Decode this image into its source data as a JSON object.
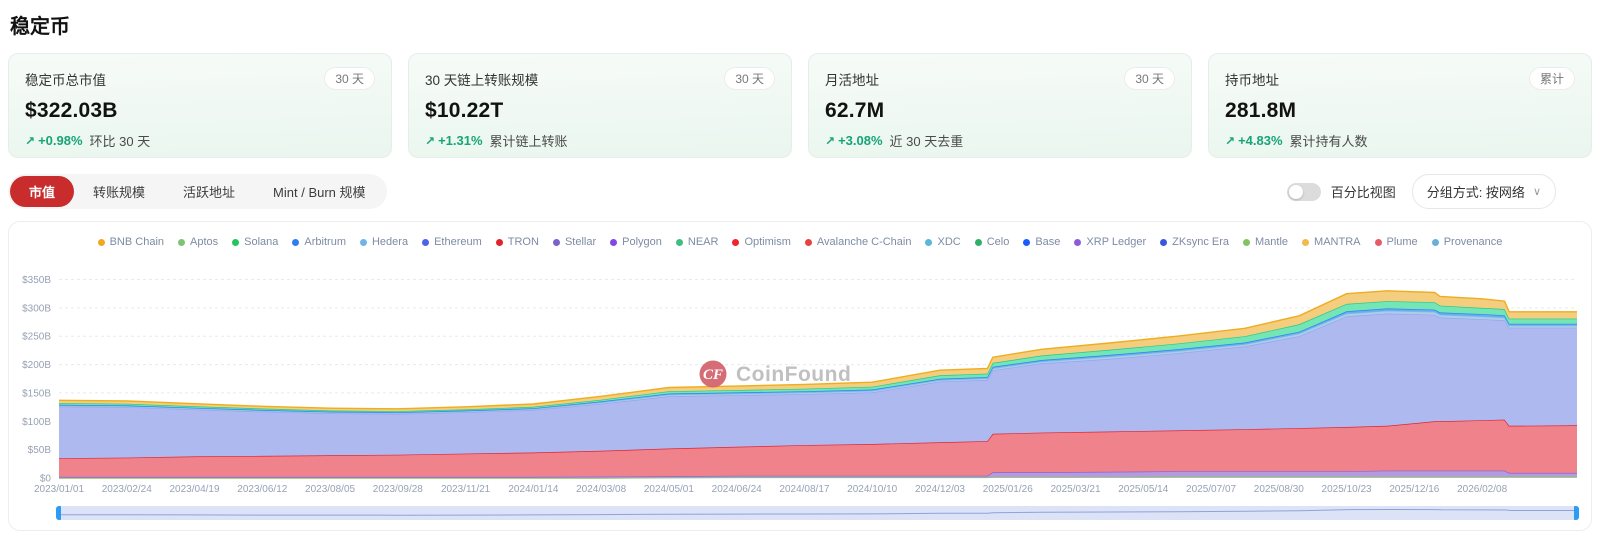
{
  "page": {
    "title": "稳定币"
  },
  "icons": {
    "trend_up": "↗",
    "chevron_down": "∨"
  },
  "stats": [
    {
      "title": "稳定币总市值",
      "badge": "30 天",
      "value": "$322.03B",
      "change": "+0.98%",
      "change_label": "环比 30 天"
    },
    {
      "title": "30 天链上转账规模",
      "badge": "30 天",
      "value": "$10.22T",
      "change": "+1.31%",
      "change_label": "累计链上转账"
    },
    {
      "title": "月活地址",
      "badge": "30 天",
      "value": "62.7M",
      "change": "+3.08%",
      "change_label": "近 30 天去重"
    },
    {
      "title": "持币地址",
      "badge": "累计",
      "value": "281.8M",
      "change": "+4.83%",
      "change_label": "累计持有人数"
    }
  ],
  "tabs": [
    {
      "label": "市值",
      "active": true
    },
    {
      "label": "转账规模",
      "active": false
    },
    {
      "label": "活跃地址",
      "active": false
    },
    {
      "label": "Mint / Burn 规模",
      "active": false
    }
  ],
  "controls": {
    "toggle_label": "百分比视图",
    "toggle_on": false,
    "group_select": "分组方式: 按网络"
  },
  "watermark": {
    "logo_text": "CF",
    "brand": "CoinFound",
    "logo_color": "#d4666f",
    "text_color": "#bdbdbd"
  },
  "colors": {
    "accent_red": "#c92c2c",
    "positive_green": "#17a477"
  },
  "chart_data": {
    "type": "area",
    "stacked": true,
    "unit": "USD billions",
    "ylim": [
      0,
      350
    ],
    "grid": "dashed-horizontal",
    "legend_position": "top",
    "y_tick_labels": [
      "$0",
      "$50B",
      "$100B",
      "$150B",
      "$200B",
      "$250B",
      "$300B",
      "$350B"
    ],
    "x_tick_labels": [
      "2023/01/01",
      "2023/02/24",
      "2023/04/19",
      "2023/06/12",
      "2023/08/05",
      "2023/09/28",
      "2023/11/21",
      "2024/01/14",
      "2024/03/08",
      "2024/05/01",
      "2024/06/24",
      "2024/08/17",
      "2024/10/10",
      "2024/12/03",
      "2025/01/26",
      "2025/03/21",
      "2025/05/14",
      "2025/07/07",
      "2025/08/30",
      "2025/10/23",
      "2025/12/16",
      "2026/02/08"
    ],
    "legend": [
      {
        "name": "BNB Chain",
        "color": "#F0A81E"
      },
      {
        "name": "Aptos",
        "color": "#7CC474"
      },
      {
        "name": "Solana",
        "color": "#22C55E"
      },
      {
        "name": "Arbitrum",
        "color": "#2D7FF0"
      },
      {
        "name": "Hedera",
        "color": "#6FB5E8"
      },
      {
        "name": "Ethereum",
        "color": "#4F63E6"
      },
      {
        "name": "TRON",
        "color": "#E0242C"
      },
      {
        "name": "Stellar",
        "color": "#7B61C9"
      },
      {
        "name": "Polygon",
        "color": "#8247E5"
      },
      {
        "name": "NEAR",
        "color": "#3FBF7F"
      },
      {
        "name": "Optimism",
        "color": "#F0232E"
      },
      {
        "name": "Avalanche C-Chain",
        "color": "#E84142"
      },
      {
        "name": "XDC",
        "color": "#57B8D8"
      },
      {
        "name": "Celo",
        "color": "#2EAF6C"
      },
      {
        "name": "Base",
        "color": "#1A5CFF"
      },
      {
        "name": "XRP Ledger",
        "color": "#8E5CD9"
      },
      {
        "name": "ZKsync Era",
        "color": "#3B57E0"
      },
      {
        "name": "Mantle",
        "color": "#84C361"
      },
      {
        "name": "MANTRA",
        "color": "#F2B94B"
      },
      {
        "name": "Plume",
        "color": "#E25C6A"
      },
      {
        "name": "Provenance",
        "color": "#6BAED8"
      }
    ],
    "x_interval_units": [
      0,
      1,
      2,
      3,
      4,
      5,
      6,
      7,
      8,
      9,
      10,
      11,
      12,
      13,
      13.7,
      13.78,
      14.5,
      15.5,
      16.5,
      17.5,
      18.3,
      19,
      19.6,
      20.3,
      20.38,
      21,
      21.33,
      21.4,
      22.4
    ],
    "series": [
      {
        "name": "Mantle",
        "color": "#84C361",
        "fill": "#CBE6AE",
        "values": [
          0,
          0,
          0,
          0,
          0,
          0,
          0,
          0,
          0,
          0.5,
          1,
          1,
          1,
          1,
          1,
          1.5,
          1.5,
          1.5,
          2,
          2,
          2,
          2,
          2,
          2,
          2,
          2,
          2,
          2,
          2
        ]
      },
      {
        "name": "Polygon",
        "color": "#8A63D2",
        "fill": "#B49BE0",
        "values": [
          2,
          2,
          2,
          2,
          2,
          2,
          2,
          2,
          2.5,
          2.5,
          3,
          3,
          3,
          3,
          3,
          8.5,
          8.5,
          9.5,
          10,
          10,
          10,
          10,
          11,
          11,
          11,
          11,
          11,
          7,
          7
        ]
      },
      {
        "name": "TRON",
        "color": "#E02430",
        "fill": "#F0828C",
        "values": [
          33,
          34,
          36,
          37,
          38,
          39,
          41,
          43,
          45.5,
          49,
          51,
          54,
          56,
          59,
          61,
          68,
          70,
          71,
          72,
          74,
          76,
          78,
          79,
          87,
          87,
          89,
          90,
          83,
          84
        ]
      },
      {
        "name": "Ethereum",
        "color": "#98A4EE",
        "fill": "#AEB9F0",
        "values": [
          91,
          89,
          83,
          78,
          74,
          72,
          73,
          75,
          83,
          92,
          91,
          90,
          91,
          107,
          108,
          112,
          122,
          128,
          136,
          146,
          162,
          195,
          198,
          188,
          183,
          178,
          175,
          173,
          172
        ]
      },
      {
        "name": "Hedera",
        "color": "#85B9E0",
        "fill": "#AACDEA",
        "values": [
          2,
          2,
          2,
          2,
          2,
          2,
          2,
          2,
          2.5,
          3,
          3,
          3,
          3,
          3,
          3,
          3.5,
          3.5,
          4,
          4,
          4,
          5,
          5,
          5,
          5,
          5,
          5,
          5,
          4,
          4
        ]
      },
      {
        "name": "Arbitrum",
        "color": "#2D86F0",
        "fill": "#66ADF4",
        "values": [
          1,
          1,
          1,
          1,
          1,
          1,
          1,
          1,
          1.5,
          2,
          2,
          2,
          2,
          2,
          2,
          2.5,
          2.5,
          3,
          3,
          3,
          3,
          4,
          4,
          4,
          4,
          4,
          4,
          3,
          3
        ]
      },
      {
        "name": "Solana",
        "color": "#25C98B",
        "fill": "#74E5B5",
        "values": [
          3,
          3,
          2.5,
          2.5,
          2,
          2,
          2,
          2.5,
          3,
          4,
          4,
          4.5,
          5,
          6,
          6,
          7,
          8,
          9,
          10,
          11,
          13,
          13,
          13,
          13,
          12,
          11,
          11,
          9,
          9
        ]
      },
      {
        "name": "BNB Chain",
        "color": "#EEAD1E",
        "fill": "#F5CD7E",
        "values": [
          5,
          5,
          4.5,
          4,
          4,
          4,
          4.5,
          5,
          6,
          6.5,
          7,
          7.5,
          8,
          9,
          9,
          10,
          11,
          12,
          13,
          14,
          15,
          18,
          18,
          17,
          16,
          16,
          14,
          12,
          12
        ]
      }
    ]
  }
}
